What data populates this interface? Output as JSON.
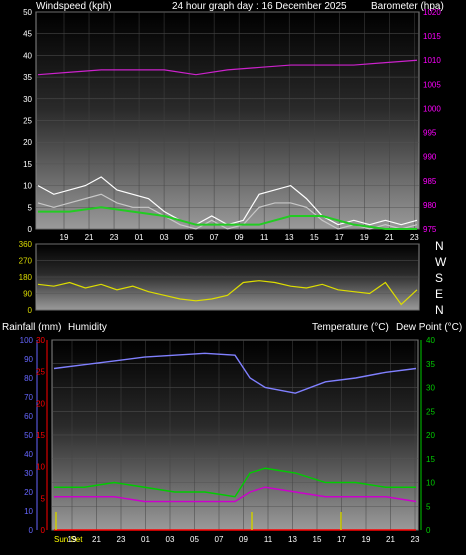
{
  "header": {
    "windspeed_label": "Windspeed (kph)",
    "title": "24 hour graph day : 16 December 2025",
    "barometer_label": "Barometer (hpa)"
  },
  "middle": {
    "rainfall_label": "Rainfall (mm)",
    "humidity_label": "Humidity",
    "temp_label": "Temperature (°C)",
    "dewpoint_label": "Dew Point (°C)"
  },
  "compass": [
    "N",
    "W",
    "S",
    "E",
    "N"
  ],
  "sunset_label": "Sun Set",
  "colors": {
    "wind": "#c8c8c8",
    "gust": "#ffffff",
    "wind_avg": "#22cc22",
    "barometer": "#cc22cc",
    "direction": "#dddd00",
    "humidity": "#8080ff",
    "temperature": "#00cc00",
    "dewpoint": "#cc00cc",
    "rain": "#ff0000",
    "rain_marker": "#cccc00",
    "left_axis": "#ffffff",
    "baro_axis": "#ff00ff",
    "rain_axis": "#ff0000",
    "humidity_axis": "#6666ff",
    "temp_axis": "#00cc00"
  },
  "chart_data": [
    {
      "type": "line",
      "title": "24 hour graph day : 16 December 2025",
      "x_ticks": [
        "19",
        "21",
        "23",
        "01",
        "03",
        "05",
        "07",
        "09",
        "11",
        "13",
        "15",
        "17",
        "19",
        "21",
        "23"
      ],
      "left_axis": {
        "label": "Windspeed (kph)",
        "ylim": [
          0,
          50
        ],
        "ticks": [
          0,
          5,
          10,
          15,
          20,
          25,
          30,
          35,
          40,
          45,
          50
        ]
      },
      "right_axis": {
        "label": "Barometer (hpa)",
        "ylim": [
          975,
          1020
        ],
        "ticks": [
          975,
          980,
          985,
          990,
          995,
          1000,
          1005,
          1010,
          1015,
          1020
        ]
      },
      "series": [
        {
          "name": "Barometer",
          "axis": "right",
          "x": [
            0,
            2,
            4,
            6,
            8,
            10,
            12,
            14,
            16,
            18,
            20,
            22,
            24
          ],
          "values": [
            1007,
            1007.5,
            1008,
            1008,
            1008,
            1007,
            1008,
            1008.5,
            1009,
            1009,
            1009,
            1009.5,
            1010
          ]
        },
        {
          "name": "Wind gust",
          "axis": "left",
          "x": [
            0,
            1,
            2,
            3,
            4,
            5,
            6,
            7,
            8,
            9,
            10,
            11,
            12,
            13,
            14,
            15,
            16,
            17,
            18,
            19,
            20,
            21,
            22,
            23,
            24
          ],
          "values": [
            10,
            8,
            9,
            10,
            12,
            9,
            8,
            7,
            4,
            2,
            1,
            3,
            1,
            2,
            8,
            9,
            10,
            7,
            3,
            1,
            2,
            1,
            2,
            1,
            2
          ]
        },
        {
          "name": "Wind speed",
          "axis": "left",
          "x": [
            0,
            1,
            2,
            3,
            4,
            5,
            6,
            7,
            8,
            9,
            10,
            11,
            12,
            13,
            14,
            15,
            16,
            17,
            18,
            19,
            20,
            21,
            22,
            23,
            24
          ],
          "values": [
            6,
            5,
            6,
            7,
            8,
            6,
            5,
            5,
            3,
            1,
            0,
            2,
            0,
            1,
            5,
            6,
            6,
            5,
            2,
            0,
            1,
            0,
            1,
            0,
            1
          ]
        },
        {
          "name": "Wind average",
          "axis": "left",
          "x": [
            0,
            2,
            4,
            6,
            8,
            10,
            12,
            14,
            16,
            18,
            20,
            22,
            24
          ],
          "values": [
            4,
            4,
            5,
            4,
            3,
            1,
            1,
            1,
            3,
            3,
            1,
            0,
            0
          ]
        }
      ]
    },
    {
      "type": "line",
      "x_ticks": [],
      "left_axis": {
        "ylim": [
          0,
          360
        ],
        "ticks": [
          0,
          90,
          180,
          270,
          360
        ]
      },
      "series": [
        {
          "name": "Wind direction",
          "x": [
            0,
            1,
            2,
            3,
            4,
            5,
            6,
            7,
            8,
            9,
            10,
            11,
            12,
            13,
            14,
            15,
            16,
            17,
            18,
            19,
            20,
            21,
            22,
            23,
            24
          ],
          "values": [
            140,
            130,
            150,
            120,
            140,
            110,
            130,
            100,
            80,
            60,
            50,
            60,
            80,
            150,
            160,
            150,
            130,
            120,
            140,
            110,
            100,
            90,
            150,
            30,
            110
          ]
        }
      ]
    },
    {
      "type": "line",
      "x_ticks": [
        "Sun Set",
        "19",
        "21",
        "23",
        "01",
        "03",
        "05",
        "07",
        "09",
        "11",
        "13",
        "15",
        "17",
        "19",
        "21",
        "23"
      ],
      "rain_axis": {
        "label": "Rainfall (mm)",
        "ylim": [
          0,
          30
        ],
        "ticks": [
          0,
          5,
          10,
          15,
          20,
          25,
          30
        ]
      },
      "humidity_axis": {
        "label": "Humidity",
        "ylim": [
          0,
          100
        ],
        "ticks": [
          0,
          10,
          20,
          30,
          40,
          50,
          60,
          70,
          80,
          90,
          100
        ]
      },
      "temp_axis": {
        "label": "Temperature (°C) Dew Point (°C)",
        "ylim": [
          0,
          40
        ],
        "ticks": [
          0,
          5,
          10,
          15,
          20,
          25,
          30,
          35,
          40
        ]
      },
      "series": [
        {
          "name": "Humidity",
          "axis": "humidity",
          "x": [
            0,
            2,
            4,
            6,
            8,
            10,
            12,
            13,
            14,
            16,
            18,
            20,
            22,
            24
          ],
          "values": [
            85,
            87,
            89,
            91,
            92,
            93,
            92,
            80,
            75,
            72,
            78,
            80,
            83,
            85
          ]
        },
        {
          "name": "Temperature",
          "axis": "temp",
          "x": [
            0,
            2,
            4,
            6,
            8,
            10,
            12,
            13,
            14,
            16,
            18,
            20,
            22,
            24
          ],
          "values": [
            9,
            9,
            10,
            9,
            8,
            8,
            7,
            12,
            13,
            12,
            10,
            10,
            9,
            9
          ]
        },
        {
          "name": "Dew Point",
          "axis": "temp",
          "x": [
            0,
            2,
            4,
            6,
            8,
            10,
            12,
            13,
            14,
            16,
            18,
            20,
            22,
            24
          ],
          "values": [
            7,
            7,
            7,
            6,
            6,
            6,
            6,
            8,
            9,
            8,
            7,
            7,
            7,
            6
          ]
        },
        {
          "name": "Rainfall",
          "axis": "rain",
          "x": [
            0,
            24
          ],
          "values": [
            0,
            0
          ]
        }
      ]
    }
  ]
}
